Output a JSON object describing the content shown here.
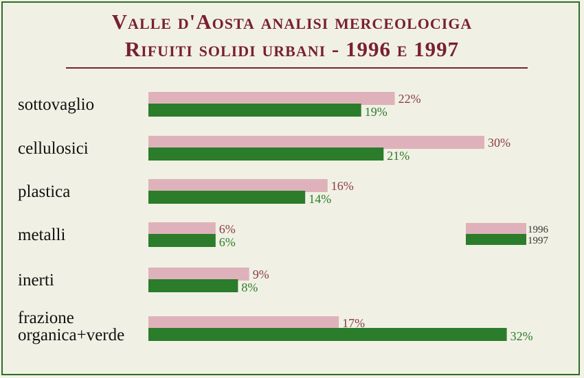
{
  "chart_data": {
    "type": "bar",
    "orientation": "horizontal",
    "title": "Valle d'Aosta analisi merceolociga",
    "subtitle": "Rifuiti solidi urbani - 1996 e 1997",
    "categories": [
      [
        "sottovaglio"
      ],
      [
        "cellulosici"
      ],
      [
        "plastica"
      ],
      [
        "metalli"
      ],
      [
        "inerti"
      ],
      [
        "frazione",
        "organica+verde"
      ]
    ],
    "series": [
      {
        "name": "1996",
        "values": [
          22,
          30,
          16,
          6,
          9,
          17
        ],
        "labels": [
          "22%",
          "30%",
          "16%",
          "6%",
          "9%",
          "17%"
        ]
      },
      {
        "name": "1997",
        "values": [
          19,
          21,
          14,
          6,
          8,
          32
        ],
        "labels": [
          "19%",
          "21%",
          "14%",
          "6%",
          "8%",
          "32%"
        ]
      }
    ],
    "xlim": [
      0,
      32
    ],
    "grid": false,
    "legend": "right",
    "colors": {
      "1996": "#dfb2bb",
      "1997": "#2b7c2b",
      "title": "#7a2030"
    }
  }
}
